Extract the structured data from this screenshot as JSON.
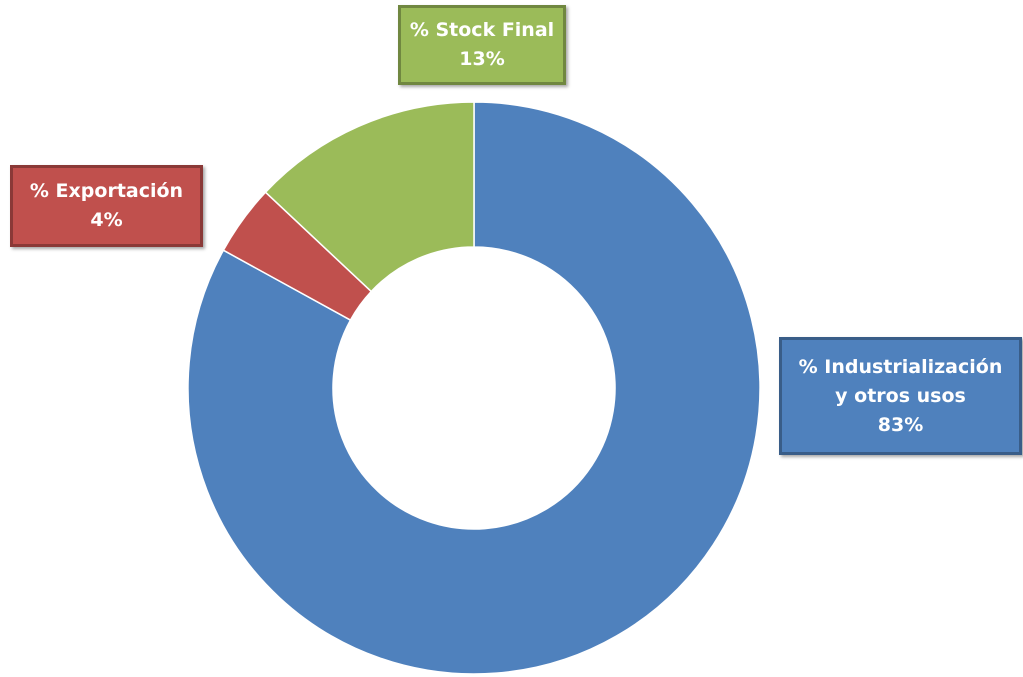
{
  "chart_data": {
    "type": "donut",
    "categories": [
      "% Industrialización\ny otros usos",
      "% Exportación",
      "% Stock Final"
    ],
    "values": [
      83,
      4,
      13
    ],
    "value_labels": [
      "83%",
      "4%",
      "13%"
    ],
    "colors": [
      "#4f81bd",
      "#c0504d",
      "#9bbb59"
    ]
  }
}
